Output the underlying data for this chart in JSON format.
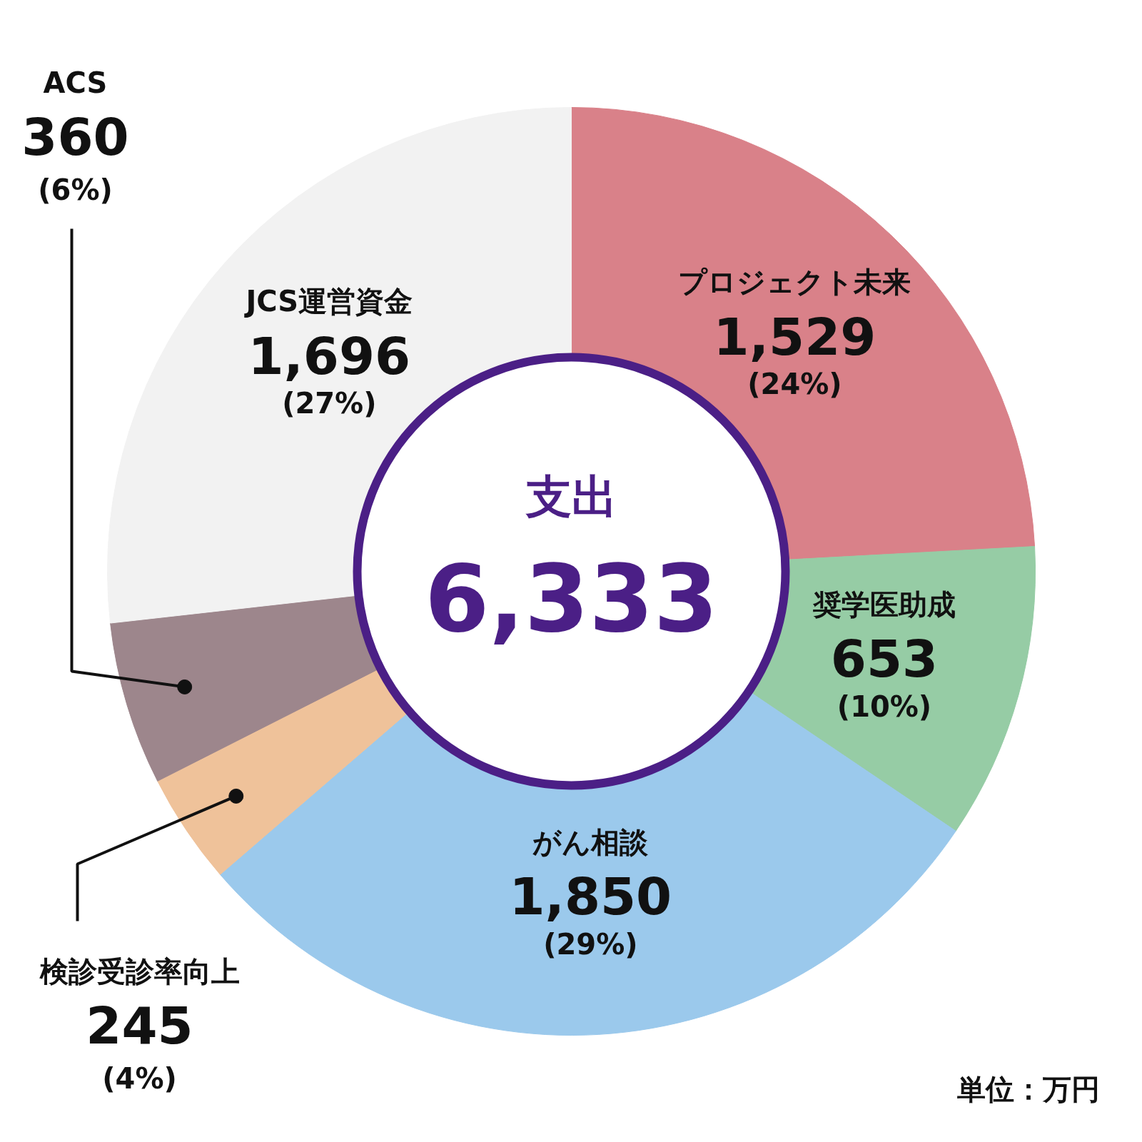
{
  "chart_data": {
    "type": "donut",
    "title": "支出",
    "categories": [
      "プロジェクト未来",
      "奨学医助成",
      "がん相談",
      "検診受診率向上",
      "ACS",
      "JCS運営資金"
    ],
    "values": [
      1529,
      653,
      1850,
      245,
      360,
      1696
    ],
    "colors": [
      "#d98189",
      "#96cca5",
      "#9bc9ec",
      "#efc29a",
      "#9d868c",
      "#f2f2f2"
    ],
    "value_labels": [
      "1,529 (24%)",
      "653 (10%)",
      "1,850 (29%)",
      "245 (4%)",
      "360 (6%)",
      "1,696 (27%)"
    ],
    "annotations": [
      "6,333",
      "単位：万円"
    ],
    "legend": false
  }
}
